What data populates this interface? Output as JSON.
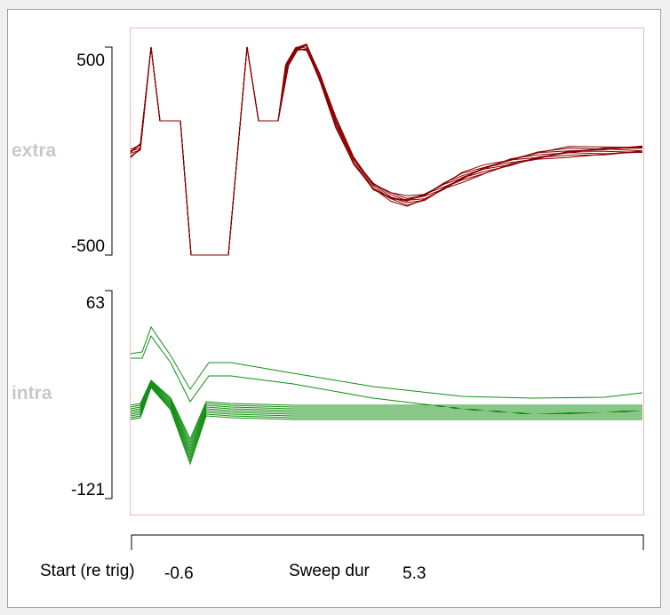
{
  "channels": {
    "extra": {
      "label": "extra",
      "y_max_label": "500",
      "y_min_label": "-500",
      "color": "#8b0000"
    },
    "intra": {
      "label": "intra",
      "y_max_label": "63",
      "y_min_label": "-121",
      "color": "#138f13"
    }
  },
  "controls": {
    "start_label": "Start (re trig)",
    "start_value": "-0.6",
    "sweep_label": "Sweep dur",
    "sweep_value": "5.3"
  },
  "colors": {
    "frame": "#f2b8b8",
    "background": "#ffffff"
  }
}
